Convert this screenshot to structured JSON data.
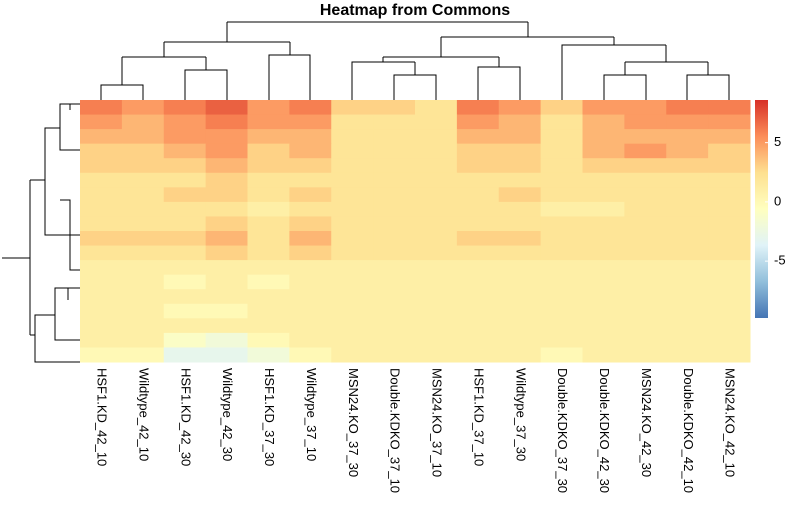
{
  "chart_data": {
    "type": "heatmap",
    "title": "Heatmap from Commons",
    "columns": [
      "HSF1.KD_42_10",
      "Wildtype_42_10",
      "HSF1.KD_42_30",
      "Wildtype_42_30",
      "HSF1.KD_37_30",
      "Wildtype_37_10",
      "MSN24.KO_37_30",
      "Double.KDKO_37_10",
      "MSN24.KO_37_10",
      "HSF1.KD_37_10",
      "Wildtype_37_30",
      "Double.KDKO_37_30",
      "Double.KDKO_42_30",
      "MSN24.KO_42_30",
      "Double.KDKO_42_10",
      "MSN24.KO_42_10"
    ],
    "z": [
      [
        6,
        5,
        6,
        7,
        5,
        6,
        3,
        3,
        2,
        6,
        5,
        3,
        5,
        5,
        6,
        6
      ],
      [
        5,
        4,
        5,
        6,
        5,
        5,
        2,
        2,
        2,
        5,
        4,
        2,
        4,
        5,
        5,
        5
      ],
      [
        4,
        4,
        5,
        5,
        4,
        4,
        2,
        2,
        2,
        4,
        4,
        2,
        4,
        4,
        4,
        4
      ],
      [
        3,
        3,
        4,
        5,
        3,
        4,
        2,
        2,
        2,
        3,
        3,
        2,
        4,
        5,
        4,
        3
      ],
      [
        3,
        3,
        3,
        4,
        3,
        3,
        2,
        2,
        2,
        3,
        3,
        2,
        3,
        3,
        3,
        3
      ],
      [
        2,
        2,
        2,
        3,
        2,
        2,
        2,
        2,
        2,
        2,
        2,
        2,
        2,
        2,
        2,
        2
      ],
      [
        2,
        2,
        3,
        3,
        2,
        3,
        2,
        2,
        2,
        2,
        3,
        2,
        2,
        2,
        2,
        2
      ],
      [
        2,
        2,
        2,
        2,
        1,
        2,
        2,
        2,
        2,
        2,
        2,
        1,
        1,
        2,
        2,
        2
      ],
      [
        2,
        2,
        2,
        3,
        2,
        3,
        2,
        2,
        2,
        2,
        2,
        2,
        2,
        2,
        2,
        2
      ],
      [
        3,
        3,
        3,
        4,
        2,
        4,
        2,
        2,
        2,
        3,
        3,
        2,
        2,
        2,
        2,
        2
      ],
      [
        2,
        2,
        2,
        3,
        2,
        3,
        2,
        2,
        2,
        2,
        2,
        2,
        2,
        2,
        2,
        2
      ],
      [
        1,
        1,
        1,
        1,
        1,
        1,
        1,
        1,
        1,
        1,
        1,
        1,
        1,
        1,
        1,
        1
      ],
      [
        1,
        1,
        0,
        1,
        0,
        1,
        1,
        1,
        1,
        1,
        1,
        1,
        1,
        1,
        1,
        1
      ],
      [
        1,
        1,
        1,
        1,
        1,
        1,
        1,
        1,
        1,
        1,
        1,
        1,
        1,
        1,
        1,
        1
      ],
      [
        1,
        1,
        0,
        0,
        1,
        1,
        1,
        1,
        1,
        1,
        1,
        1,
        1,
        1,
        1,
        1
      ],
      [
        1,
        1,
        1,
        1,
        1,
        1,
        1,
        1,
        1,
        1,
        1,
        1,
        1,
        1,
        1,
        1
      ],
      [
        1,
        1,
        -1,
        -2,
        0,
        1,
        1,
        1,
        1,
        1,
        1,
        1,
        1,
        1,
        1,
        1
      ],
      [
        0,
        0,
        -3,
        -3,
        -2,
        0,
        1,
        1,
        1,
        1,
        1,
        0,
        1,
        1,
        1,
        1
      ]
    ],
    "zlim": [
      -9.8,
      8.6
    ],
    "zticks": [
      -5,
      0,
      5
    ],
    "colors": [
      "#4575b4",
      "#91bfdb",
      "#e0f3f8",
      "#ffffbf",
      "#fee090",
      "#fc8d59",
      "#d73027"
    ]
  }
}
